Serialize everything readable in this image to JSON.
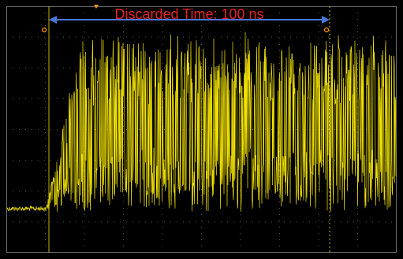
{
  "annotation": {
    "label": "Discarded Time: 100 ns"
  }
}
